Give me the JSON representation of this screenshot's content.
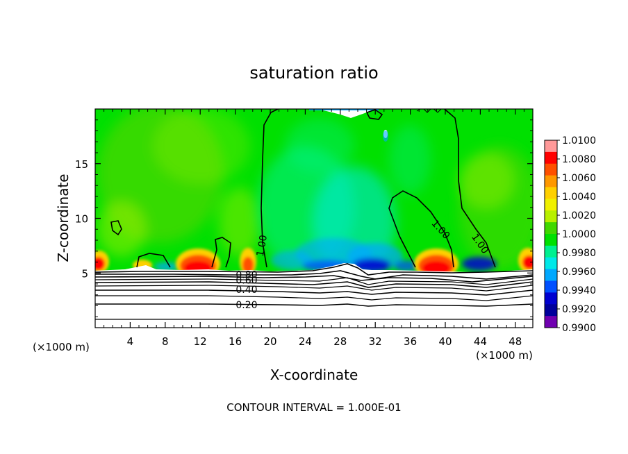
{
  "chart_data": {
    "type": "heatmap",
    "title": "saturation ratio",
    "xlabel": "X-coordinate",
    "ylabel": "Z-coordinate",
    "x_unit_label": "(×1000 m)",
    "xlim": [
      0,
      50
    ],
    "ylim": [
      0,
      20
    ],
    "xticks": [
      4,
      8,
      12,
      16,
      20,
      24,
      28,
      32,
      36,
      40,
      44,
      48
    ],
    "yticks": [
      5,
      10,
      15
    ],
    "footer": "CONTOUR INTERVAL = 1.000E-01",
    "colorbar": {
      "levels": [
        "1.0100",
        "1.0080",
        "1.0060",
        "1.0040",
        "1.0020",
        "1.0000",
        "0.9980",
        "0.9960",
        "0.9940",
        "0.9920",
        "0.9900"
      ],
      "colors": [
        "#ff9999",
        "#ff0000",
        "#ff5000",
        "#ff9800",
        "#ffd000",
        "#f0f000",
        "#b8f000",
        "#40d800",
        "#00e000",
        "#00f090",
        "#00e8e8",
        "#00a8ff",
        "#0050ff",
        "#0000d0",
        "#00009c",
        "#7000b0"
      ]
    },
    "contour_labels": [
      {
        "text": "1.00",
        "x": 19.0,
        "z": 7.5,
        "angle": -80
      },
      {
        "text": "1.00",
        "x": 39.5,
        "z": 9.0,
        "angle": 48
      },
      {
        "text": "1.00",
        "x": 44.0,
        "z": 7.7,
        "angle": 55
      },
      {
        "text": "0.80",
        "x": 17.3,
        "z": 4.85,
        "angle": 0
      },
      {
        "text": "0.60",
        "x": 17.3,
        "z": 4.35,
        "angle": 0
      },
      {
        "text": "0.40",
        "x": 17.3,
        "z": 3.5,
        "angle": 0
      },
      {
        "text": "0.20",
        "x": 17.3,
        "z": 2.1,
        "angle": 0
      }
    ]
  }
}
